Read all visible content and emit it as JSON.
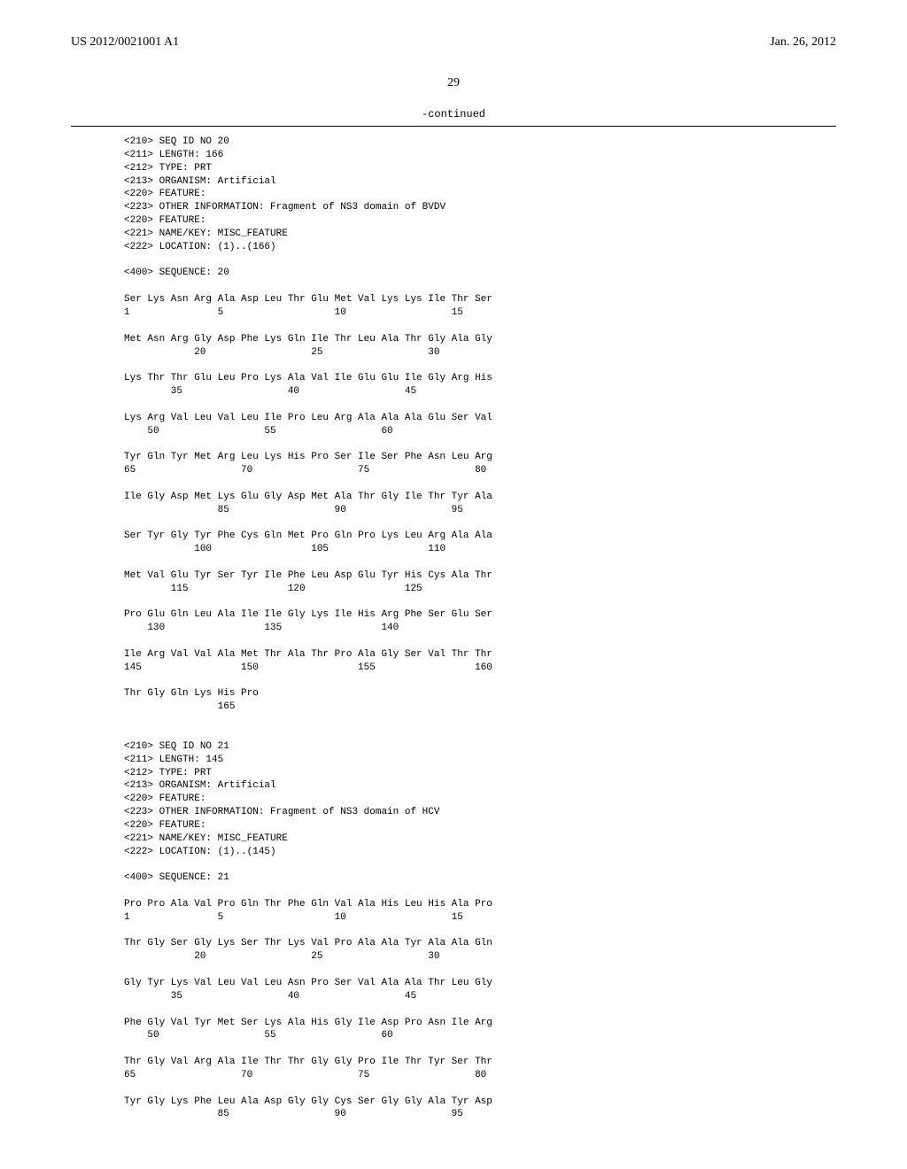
{
  "header": {
    "pub_number": "US 2012/0021001 A1",
    "pub_date": "Jan. 26, 2012"
  },
  "page_number": "29",
  "continued_label": "-continued",
  "seq20": {
    "meta": [
      "<210> SEQ ID NO 20",
      "<211> LENGTH: 166",
      "<212> TYPE: PRT",
      "<213> ORGANISM: Artificial",
      "<220> FEATURE:",
      "<223> OTHER INFORMATION: Fragment of NS3 domain of BVDV",
      "<220> FEATURE:",
      "<221> NAME/KEY: MISC_FEATURE",
      "<222> LOCATION: (1)..(166)"
    ],
    "seq_label": "<400> SEQUENCE: 20",
    "rows": [
      {
        "aa": "Ser Lys Asn Arg Ala Asp Leu Thr Glu Met Val Lys Lys Ile Thr Ser",
        "num": "1               5                   10                  15      "
      },
      {
        "aa": "Met Asn Arg Gly Asp Phe Lys Gln Ile Thr Leu Ala Thr Gly Ala Gly",
        "num": "            20                  25                  30          "
      },
      {
        "aa": "Lys Thr Thr Glu Leu Pro Lys Ala Val Ile Glu Glu Ile Gly Arg His",
        "num": "        35                  40                  45              "
      },
      {
        "aa": "Lys Arg Val Leu Val Leu Ile Pro Leu Arg Ala Ala Ala Glu Ser Val",
        "num": "    50                  55                  60                  "
      },
      {
        "aa": "Tyr Gln Tyr Met Arg Leu Lys His Pro Ser Ile Ser Phe Asn Leu Arg",
        "num": "65                  70                  75                  80  "
      },
      {
        "aa": "Ile Gly Asp Met Lys Glu Gly Asp Met Ala Thr Gly Ile Thr Tyr Ala",
        "num": "                85                  90                  95      "
      },
      {
        "aa": "Ser Tyr Gly Tyr Phe Cys Gln Met Pro Gln Pro Lys Leu Arg Ala Ala",
        "num": "            100                 105                 110         "
      },
      {
        "aa": "Met Val Glu Tyr Ser Tyr Ile Phe Leu Asp Glu Tyr His Cys Ala Thr",
        "num": "        115                 120                 125             "
      },
      {
        "aa": "Pro Glu Gln Leu Ala Ile Ile Gly Lys Ile His Arg Phe Ser Glu Ser",
        "num": "    130                 135                 140                 "
      },
      {
        "aa": "Ile Arg Val Val Ala Met Thr Ala Thr Pro Ala Gly Ser Val Thr Thr",
        "num": "145                 150                 155                 160 "
      },
      {
        "aa": "Thr Gly Gln Lys His Pro",
        "num": "                165     "
      }
    ]
  },
  "seq21": {
    "meta": [
      "<210> SEQ ID NO 21",
      "<211> LENGTH: 145",
      "<212> TYPE: PRT",
      "<213> ORGANISM: Artificial",
      "<220> FEATURE:",
      "<223> OTHER INFORMATION: Fragment of NS3 domain of HCV",
      "<220> FEATURE:",
      "<221> NAME/KEY: MISC_FEATURE",
      "<222> LOCATION: (1)..(145)"
    ],
    "seq_label": "<400> SEQUENCE: 21",
    "rows": [
      {
        "aa": "Pro Pro Ala Val Pro Gln Thr Phe Gln Val Ala His Leu His Ala Pro",
        "num": "1               5                   10                  15      "
      },
      {
        "aa": "Thr Gly Ser Gly Lys Ser Thr Lys Val Pro Ala Ala Tyr Ala Ala Gln",
        "num": "            20                  25                  30          "
      },
      {
        "aa": "Gly Tyr Lys Val Leu Val Leu Asn Pro Ser Val Ala Ala Thr Leu Gly",
        "num": "        35                  40                  45              "
      },
      {
        "aa": "Phe Gly Val Tyr Met Ser Lys Ala His Gly Ile Asp Pro Asn Ile Arg",
        "num": "    50                  55                  60                  "
      },
      {
        "aa": "Thr Gly Val Arg Ala Ile Thr Thr Gly Gly Pro Ile Thr Tyr Ser Thr",
        "num": "65                  70                  75                  80  "
      },
      {
        "aa": "Tyr Gly Lys Phe Leu Ala Asp Gly Gly Cys Ser Gly Gly Ala Tyr Asp",
        "num": "                85                  90                  95      "
      }
    ]
  }
}
